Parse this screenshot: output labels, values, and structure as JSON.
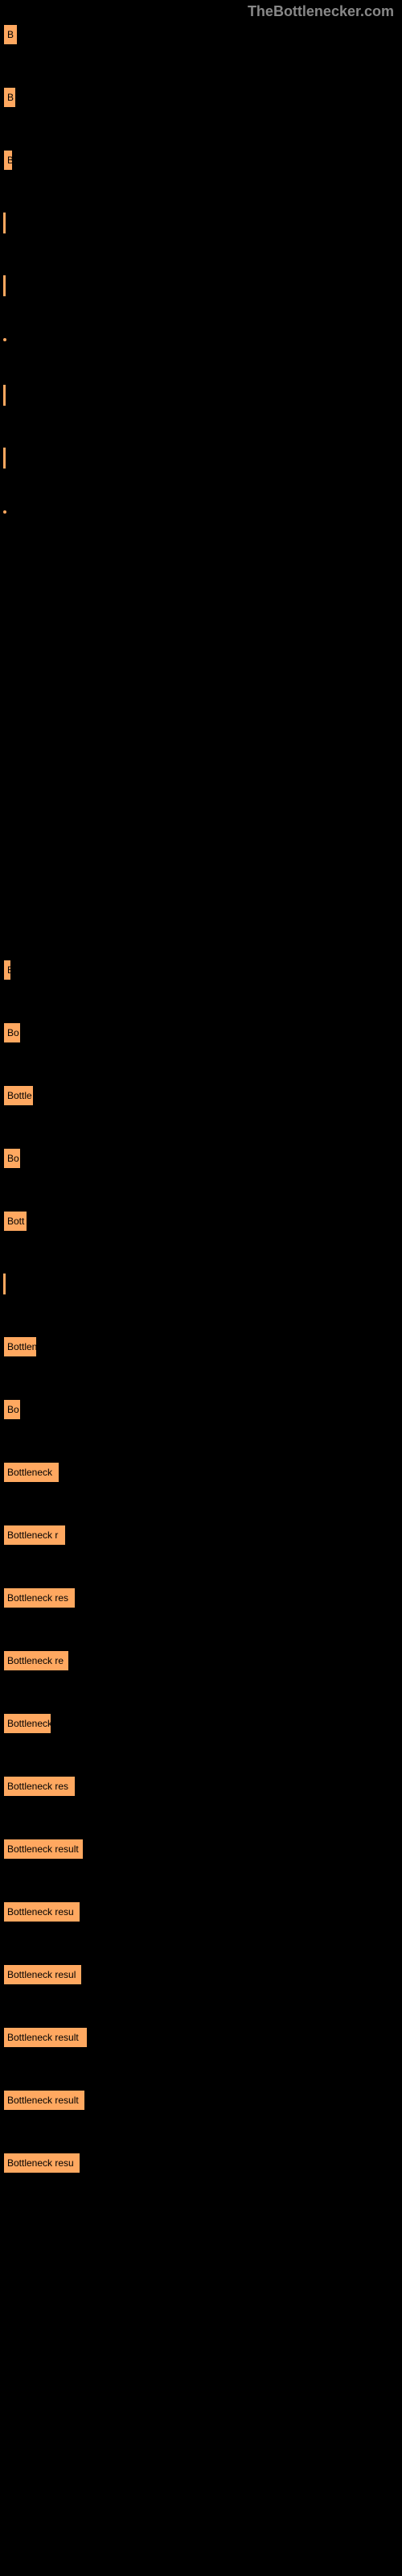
{
  "watermark": "TheBottlenecker.com",
  "bars": [
    {
      "width": 18,
      "label": "B",
      "type": "bar"
    },
    {
      "width": 16,
      "label": "B",
      "type": "bar"
    },
    {
      "width": 12,
      "label": "B",
      "type": "bar"
    },
    {
      "width": 4,
      "label": "",
      "type": "thin"
    },
    {
      "width": 4,
      "label": "",
      "type": "thin"
    },
    {
      "width": 4,
      "label": "",
      "type": "dot"
    },
    {
      "width": 4,
      "label": "",
      "type": "thin"
    },
    {
      "width": 4,
      "label": "",
      "type": "thin"
    },
    {
      "width": 4,
      "label": "",
      "type": "dot"
    }
  ],
  "bars2": [
    {
      "width": 10,
      "label": "B",
      "type": "bar"
    },
    {
      "width": 22,
      "label": "Bo",
      "type": "bar"
    },
    {
      "width": 38,
      "label": "Bottle",
      "type": "bar"
    },
    {
      "width": 22,
      "label": "Bo",
      "type": "bar"
    },
    {
      "width": 30,
      "label": "Bott",
      "type": "bar"
    },
    {
      "width": 4,
      "label": "",
      "type": "thin"
    },
    {
      "width": 42,
      "label": "Bottlen",
      "type": "bar"
    },
    {
      "width": 22,
      "label": "Bo",
      "type": "bar"
    },
    {
      "width": 70,
      "label": "Bottleneck",
      "type": "bar"
    },
    {
      "width": 78,
      "label": "Bottleneck r",
      "type": "bar"
    },
    {
      "width": 90,
      "label": "Bottleneck res",
      "type": "bar"
    },
    {
      "width": 82,
      "label": "Bottleneck re",
      "type": "bar"
    },
    {
      "width": 60,
      "label": "Bottleneck",
      "type": "bar"
    },
    {
      "width": 90,
      "label": "Bottleneck res",
      "type": "bar"
    },
    {
      "width": 100,
      "label": "Bottleneck result",
      "type": "bar"
    },
    {
      "width": 96,
      "label": "Bottleneck resu",
      "type": "bar"
    },
    {
      "width": 98,
      "label": "Bottleneck resul",
      "type": "bar"
    },
    {
      "width": 105,
      "label": "Bottleneck result",
      "type": "bar"
    },
    {
      "width": 102,
      "label": "Bottleneck result",
      "type": "bar"
    },
    {
      "width": 96,
      "label": "Bottleneck resu",
      "type": "bar"
    }
  ],
  "colors": {
    "background": "#000000",
    "bar": "#ffa860",
    "watermark": "#888888"
  }
}
